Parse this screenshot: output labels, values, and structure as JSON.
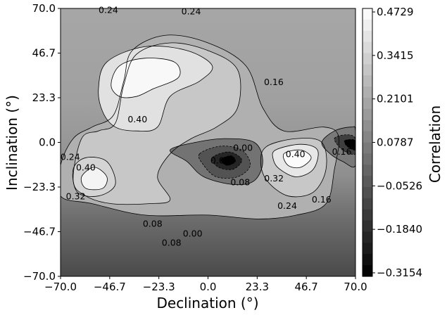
{
  "chart_data": {
    "type": "heatmap",
    "subtype": "filled-contour",
    "xlabel": "Declination (°)",
    "ylabel": "Inclination (°)",
    "colorbar_label": "Correlation",
    "xlim": [
      -70.0,
      70.0
    ],
    "ylim": [
      -70.0,
      70.0
    ],
    "x_ticks": [
      "−70.0",
      "−46.7",
      "−23.3",
      "0.0",
      "23.3",
      "46.7",
      "70.0"
    ],
    "y_ticks": [
      "70.0",
      "46.7",
      "23.3",
      "0.0",
      "−23.3",
      "−46.7",
      "−70.0"
    ],
    "colorbar_ticks": [
      "0.4729",
      "0.3415",
      "0.2101",
      "0.0787",
      "−0.0526",
      "−0.1840",
      "−0.3154"
    ],
    "colorbar_range": [
      -0.3154,
      0.4729
    ],
    "colormap": "gray",
    "grid": false,
    "contour_labels": [
      {
        "text": "0.24",
        "x": -47.3,
        "y": 69.0
      },
      {
        "text": "0.24",
        "x": -8.0,
        "y": 68.3
      },
      {
        "text": "0.16",
        "x": 31.2,
        "y": 31.5
      },
      {
        "text": "0.40",
        "x": -33.5,
        "y": 12.0
      },
      {
        "text": "0.24",
        "x": -65.4,
        "y": -7.8
      },
      {
        "text": "0.40",
        "x": -58.0,
        "y": -13.2
      },
      {
        "text": "0.32",
        "x": -62.8,
        "y": -28.3
      },
      {
        "text": "0.08",
        "x": 5.8,
        "y": -9.5
      },
      {
        "text": "0.00",
        "x": 16.6,
        "y": -3.0
      },
      {
        "text": "0.08",
        "x": 15.3,
        "y": -21.0
      },
      {
        "text": "0.40",
        "x": 41.5,
        "y": -6.2
      },
      {
        "text": "0.32",
        "x": 31.3,
        "y": -19.0
      },
      {
        "text": "0.24",
        "x": 37.6,
        "y": -33.2
      },
      {
        "text": "0.16",
        "x": 53.9,
        "y": -30.0
      },
      {
        "text": "0.16",
        "x": 63.5,
        "y": -5.0
      },
      {
        "text": "0.08",
        "x": -26.3,
        "y": -42.7
      },
      {
        "text": "0.00",
        "x": -7.3,
        "y": -47.8
      },
      {
        "text": "0.08",
        "x": -17.3,
        "y": -52.5
      }
    ],
    "regions": [
      {
        "level": 0.23,
        "points": [
          [
            -70,
            -12
          ],
          [
            -64,
            2
          ],
          [
            -55,
            8
          ],
          [
            -45,
            14
          ],
          [
            -40,
            32
          ],
          [
            -36,
            48
          ],
          [
            -20,
            56
          ],
          [
            0,
            52
          ],
          [
            18,
            40
          ],
          [
            26,
            18
          ],
          [
            36,
            6
          ],
          [
            55,
            8
          ],
          [
            62,
            3
          ],
          [
            60,
            -14
          ],
          [
            56,
            -32
          ],
          [
            42,
            -38
          ],
          [
            24,
            -40
          ],
          [
            0,
            -38
          ],
          [
            -30,
            -38
          ],
          [
            -55,
            -32
          ],
          [
            -70,
            -28
          ]
        ]
      },
      {
        "level": 0.3,
        "points": [
          [
            -60,
            2
          ],
          [
            -52,
            6
          ],
          [
            -44,
            10
          ],
          [
            -40,
            30
          ],
          [
            -34,
            46
          ],
          [
            -18,
            52
          ],
          [
            0,
            48
          ],
          [
            14,
            38
          ],
          [
            14,
            18
          ],
          [
            4,
            8
          ],
          [
            -8,
            2
          ],
          [
            -18,
            -6
          ],
          [
            -24,
            -18
          ],
          [
            -18,
            -30
          ],
          [
            -28,
            -32
          ],
          [
            -46,
            -32
          ],
          [
            -58,
            -28
          ],
          [
            -64,
            -20
          ]
        ]
      },
      {
        "level": 0.38,
        "points": [
          [
            -52,
            28
          ],
          [
            -48,
            42
          ],
          [
            -30,
            50
          ],
          [
            -10,
            48
          ],
          [
            2,
            40
          ],
          [
            -4,
            32
          ],
          [
            -18,
            24
          ],
          [
            -24,
            8
          ],
          [
            -34,
            6
          ],
          [
            -44,
            8
          ],
          [
            -50,
            16
          ]
        ]
      },
      {
        "level": 0.45,
        "points": [
          [
            -46,
            30
          ],
          [
            -42,
            40
          ],
          [
            -30,
            44
          ],
          [
            -16,
            42
          ],
          [
            -14,
            34
          ],
          [
            -26,
            28
          ],
          [
            -34,
            24
          ],
          [
            -42,
            24
          ]
        ]
      },
      {
        "level": 0.34,
        "points": [
          [
            -64,
            -14
          ],
          [
            -58,
            -8
          ],
          [
            -48,
            -10
          ],
          [
            -44,
            -22
          ],
          [
            -52,
            -28
          ],
          [
            -62,
            -26
          ]
        ]
      },
      {
        "level": 0.44,
        "points": [
          [
            -60,
            -18
          ],
          [
            -54,
            -13
          ],
          [
            -48,
            -18
          ],
          [
            -50,
            -24
          ],
          [
            -58,
            -24
          ]
        ]
      },
      {
        "level": 0.3,
        "points": [
          [
            28,
            -2
          ],
          [
            42,
            2
          ],
          [
            54,
            0
          ],
          [
            56,
            -14
          ],
          [
            50,
            -26
          ],
          [
            38,
            -28
          ],
          [
            28,
            -20
          ],
          [
            25,
            -10
          ]
        ]
      },
      {
        "level": 0.4,
        "points": [
          [
            32,
            -4
          ],
          [
            44,
            -1
          ],
          [
            52,
            -4
          ],
          [
            50,
            -14
          ],
          [
            42,
            -18
          ],
          [
            34,
            -14
          ],
          [
            31,
            -9
          ]
        ]
      },
      {
        "level": 0.46,
        "points": [
          [
            36,
            -6
          ],
          [
            44,
            -4
          ],
          [
            49,
            -8
          ],
          [
            44,
            -13
          ],
          [
            38,
            -12
          ]
        ]
      },
      {
        "level": 0.04,
        "points": [
          [
            -18,
            -4
          ],
          [
            -6,
            0
          ],
          [
            8,
            2
          ],
          [
            22,
            0
          ],
          [
            26,
            -10
          ],
          [
            22,
            -20
          ],
          [
            12,
            -22
          ],
          [
            -2,
            -18
          ],
          [
            -10,
            -10
          ]
        ]
      },
      {
        "level": -0.06,
        "points": [
          [
            -4,
            -6
          ],
          [
            6,
            -2
          ],
          [
            16,
            -4
          ],
          [
            20,
            -12
          ],
          [
            14,
            -18
          ],
          [
            4,
            -18
          ],
          [
            -2,
            -12
          ]
        ]
      },
      {
        "level": -0.2,
        "points": [
          [
            2,
            -8
          ],
          [
            10,
            -5
          ],
          [
            16,
            -9
          ],
          [
            12,
            -14
          ],
          [
            5,
            -13
          ]
        ]
      },
      {
        "level": -0.31,
        "points": [
          [
            6,
            -9
          ],
          [
            11,
            -7
          ],
          [
            13,
            -10
          ],
          [
            9,
            -12
          ]
        ]
      },
      {
        "level": 0.06,
        "points": [
          [
            54,
            0
          ],
          [
            60,
            6
          ],
          [
            68,
            8
          ],
          [
            70,
            6
          ],
          [
            70,
            -12
          ],
          [
            64,
            -10
          ],
          [
            58,
            -6
          ]
        ]
      },
      {
        "level": -0.12,
        "points": [
          [
            60,
            2
          ],
          [
            66,
            4
          ],
          [
            70,
            2
          ],
          [
            70,
            -6
          ],
          [
            64,
            -4
          ]
        ]
      },
      {
        "level": -0.31,
        "points": [
          [
            65,
            1
          ],
          [
            70,
            1
          ],
          [
            70,
            -4
          ],
          [
            66,
            -2
          ]
        ]
      }
    ]
  }
}
